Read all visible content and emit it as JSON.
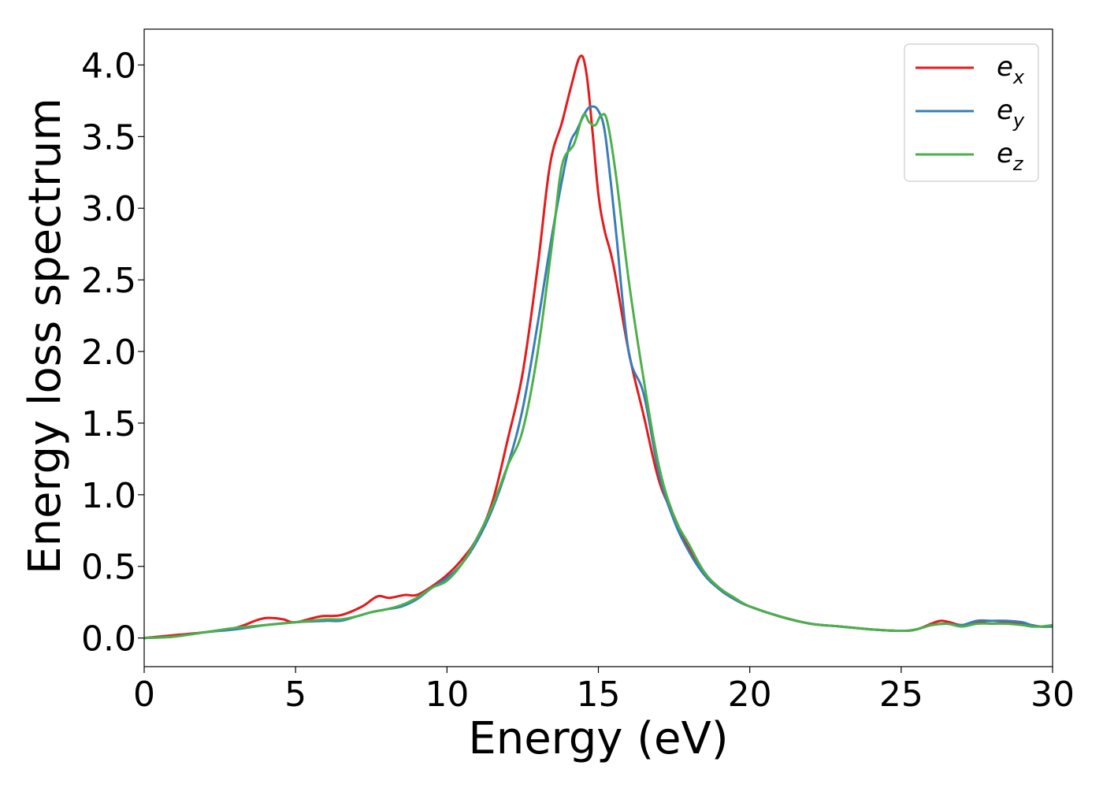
{
  "chart_data": {
    "type": "line",
    "title": "",
    "xlabel": "Energy (eV)",
    "ylabel": "Energy loss spectrum",
    "xlim": [
      0,
      30
    ],
    "ylim": [
      -0.2,
      4.25
    ],
    "xticks": [
      "0",
      "5",
      "10",
      "15",
      "20",
      "25",
      "30"
    ],
    "yticks": [
      "0.0",
      "0.5",
      "1.0",
      "1.5",
      "2.0",
      "2.5",
      "3.0",
      "3.5",
      "4.0"
    ],
    "grid": false,
    "legend_position": "top-right",
    "colors": {
      "ex": "#e41a1c",
      "ey": "#377eb8",
      "ez": "#4daf4a"
    },
    "series": [
      {
        "name": "e",
        "subscript": "x",
        "color": "#e41a1c",
        "x": [
          0,
          1,
          2,
          3,
          3.8,
          4.2,
          4.6,
          5,
          5.8,
          6.5,
          7.2,
          7.7,
          8.1,
          8.6,
          9,
          9.5,
          10,
          10.5,
          11,
          11.5,
          12,
          12.5,
          13,
          13.4,
          13.8,
          14.1,
          14.4,
          14.6,
          14.8,
          15,
          15.2,
          15.5,
          16,
          16.5,
          17,
          17.5,
          18,
          18.5,
          19,
          19.5,
          20,
          21,
          22,
          23,
          24,
          25,
          25.5,
          26,
          26.3,
          26.6,
          27,
          27.5,
          28,
          28.5,
          29,
          29.3,
          29.6,
          30
        ],
        "y": [
          0,
          0.02,
          0.04,
          0.07,
          0.13,
          0.14,
          0.13,
          0.11,
          0.15,
          0.16,
          0.22,
          0.29,
          0.28,
          0.3,
          0.3,
          0.36,
          0.44,
          0.55,
          0.7,
          0.95,
          1.38,
          1.85,
          2.6,
          3.3,
          3.6,
          3.85,
          4.06,
          3.95,
          3.55,
          3.1,
          2.85,
          2.6,
          2.0,
          1.55,
          1.1,
          0.85,
          0.62,
          0.45,
          0.34,
          0.27,
          0.22,
          0.15,
          0.1,
          0.08,
          0.06,
          0.05,
          0.06,
          0.1,
          0.12,
          0.11,
          0.09,
          0.11,
          0.1,
          0.11,
          0.1,
          0.09,
          0.08,
          0.08
        ]
      },
      {
        "name": "e",
        "subscript": "y",
        "color": "#377eb8",
        "x": [
          0,
          1,
          2,
          3,
          4,
          5,
          6,
          6.5,
          7,
          7.5,
          8,
          8.5,
          9,
          9.5,
          10,
          10.5,
          11,
          11.5,
          12,
          12.5,
          13,
          13.5,
          14,
          14.3,
          14.6,
          14.8,
          15,
          15.2,
          15.4,
          15.6,
          16,
          16.5,
          17,
          17.5,
          18,
          18.5,
          19,
          19.5,
          20,
          21,
          22,
          23,
          24,
          25,
          25.5,
          26,
          26.5,
          27,
          27.5,
          28,
          28.5,
          29,
          29.3,
          29.6,
          30
        ],
        "y": [
          0,
          0.01,
          0.04,
          0.06,
          0.09,
          0.11,
          0.12,
          0.12,
          0.15,
          0.18,
          0.2,
          0.22,
          0.27,
          0.35,
          0.42,
          0.52,
          0.68,
          0.9,
          1.2,
          1.6,
          2.2,
          2.85,
          3.4,
          3.55,
          3.68,
          3.71,
          3.68,
          3.55,
          3.2,
          2.8,
          2.0,
          1.7,
          1.15,
          0.82,
          0.6,
          0.44,
          0.34,
          0.27,
          0.22,
          0.15,
          0.1,
          0.08,
          0.06,
          0.05,
          0.06,
          0.09,
          0.1,
          0.09,
          0.12,
          0.12,
          0.12,
          0.11,
          0.09,
          0.08,
          0.08
        ]
      },
      {
        "name": "e",
        "subscript": "z",
        "color": "#4daf4a",
        "x": [
          0,
          1,
          2,
          3,
          4,
          5,
          6,
          6.5,
          7,
          7.5,
          8,
          8.5,
          9,
          9.5,
          10,
          10.5,
          11,
          11.5,
          12,
          12.5,
          13,
          13.5,
          13.8,
          14.2,
          14.5,
          14.7,
          14.9,
          15.1,
          15.3,
          15.6,
          16,
          16.5,
          17,
          17.5,
          18,
          18.5,
          19,
          19.5,
          20,
          21,
          22,
          23,
          24,
          25,
          25.5,
          26,
          26.5,
          27,
          27.5,
          28,
          28.5,
          29,
          29.3,
          29.6,
          30
        ],
        "y": [
          0,
          0.01,
          0.04,
          0.07,
          0.09,
          0.11,
          0.13,
          0.13,
          0.15,
          0.18,
          0.2,
          0.23,
          0.28,
          0.35,
          0.4,
          0.52,
          0.7,
          0.92,
          1.2,
          1.45,
          2.0,
          2.8,
          3.3,
          3.45,
          3.65,
          3.6,
          3.58,
          3.65,
          3.6,
          3.2,
          2.5,
          1.8,
          1.2,
          0.85,
          0.65,
          0.46,
          0.35,
          0.28,
          0.22,
          0.15,
          0.1,
          0.08,
          0.06,
          0.05,
          0.06,
          0.09,
          0.1,
          0.08,
          0.1,
          0.1,
          0.1,
          0.09,
          0.08,
          0.08,
          0.09
        ]
      }
    ]
  }
}
